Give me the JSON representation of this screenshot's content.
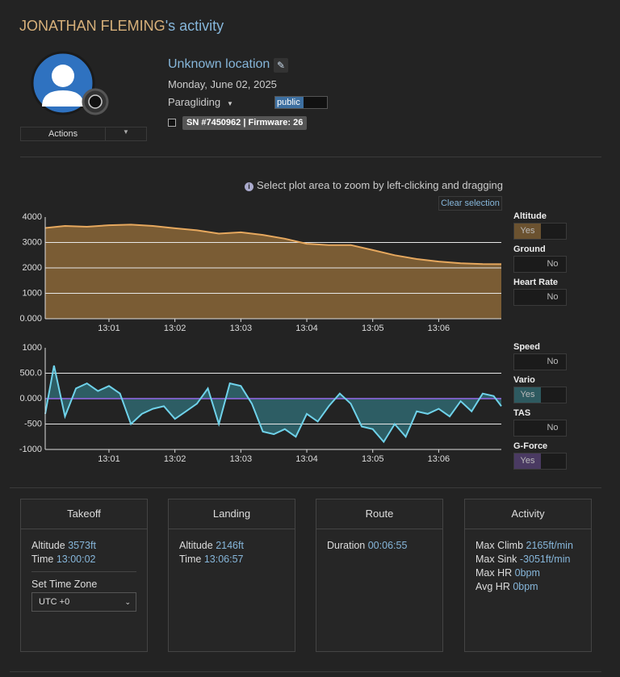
{
  "header": {
    "name": "JONATHAN FLEMING",
    "suffix": "'s activity"
  },
  "profile": {
    "actions": "Actions"
  },
  "activity": {
    "location": "Unknown location",
    "date": "Monday, June 02, 2025",
    "sport": "Paragliding",
    "visibility": "public",
    "device": "SN #7450962 | Firmware: 26"
  },
  "hint": "Select plot area to zoom by left-clicking and dragging",
  "clear": "Clear selection",
  "toggles": [
    {
      "label": "Altitude",
      "state": "Yes",
      "color": "#6b5230"
    },
    {
      "label": "Ground",
      "state": "No"
    },
    {
      "label": "Heart Rate",
      "state": "No"
    },
    {
      "label": "Speed",
      "state": "No"
    },
    {
      "label": "Vario",
      "state": "Yes",
      "color": "#2e5a60"
    },
    {
      "label": "TAS",
      "state": "No"
    },
    {
      "label": "G-Force",
      "state": "Yes",
      "color": "#4a3a62"
    }
  ],
  "chart_data": [
    {
      "type": "area",
      "color": "#e6a85e",
      "fill": "#7a5c34",
      "x": [
        "13:00:02",
        "13:00:20",
        "13:00:40",
        "13:01:00",
        "13:01:20",
        "13:01:40",
        "13:02:00",
        "13:02:20",
        "13:02:40",
        "13:03:00",
        "13:03:20",
        "13:03:40",
        "13:04:00",
        "13:04:20",
        "13:04:40",
        "13:05:00",
        "13:05:20",
        "13:05:40",
        "13:06:00",
        "13:06:20",
        "13:06:40",
        "13:06:57"
      ],
      "values": [
        3573,
        3650,
        3620,
        3680,
        3700,
        3650,
        3560,
        3480,
        3350,
        3400,
        3300,
        3150,
        2950,
        2900,
        2900,
        2700,
        2500,
        2350,
        2250,
        2180,
        2150,
        2146
      ],
      "xlim": [
        "13:00:02",
        "13:06:57"
      ],
      "xticks": [
        "13:01",
        "13:02",
        "13:03",
        "13:04",
        "13:05",
        "13:06"
      ],
      "ylim": [
        0,
        4000
      ],
      "yticks": [
        {
          "value": 0,
          "label": "0.000"
        },
        1000,
        2000,
        3000,
        4000
      ],
      "grid": true
    },
    {
      "type": "area",
      "color": "#6fd2ea",
      "fill": "#2d5d64",
      "x": [
        "13:00:02",
        "13:00:10",
        "13:00:20",
        "13:00:30",
        "13:00:40",
        "13:00:50",
        "13:01:00",
        "13:01:10",
        "13:01:20",
        "13:01:30",
        "13:01:40",
        "13:01:50",
        "13:02:00",
        "13:02:10",
        "13:02:20",
        "13:02:30",
        "13:02:40",
        "13:02:50",
        "13:03:00",
        "13:03:10",
        "13:03:20",
        "13:03:30",
        "13:03:40",
        "13:03:50",
        "13:04:00",
        "13:04:10",
        "13:04:20",
        "13:04:30",
        "13:04:40",
        "13:04:50",
        "13:05:00",
        "13:05:10",
        "13:05:20",
        "13:05:30",
        "13:05:40",
        "13:05:50",
        "13:06:00",
        "13:06:10",
        "13:06:20",
        "13:06:30",
        "13:06:40",
        "13:06:50",
        "13:06:57"
      ],
      "values": [
        -300,
        650,
        -350,
        200,
        300,
        150,
        250,
        100,
        -500,
        -300,
        -200,
        -150,
        -400,
        -250,
        -100,
        200,
        -500,
        300,
        250,
        -100,
        -650,
        -700,
        -600,
        -750,
        -300,
        -450,
        -150,
        100,
        -100,
        -550,
        -600,
        -850,
        -500,
        -750,
        -250,
        -300,
        -200,
        -350,
        -50,
        -250,
        100,
        50,
        -150
      ],
      "xlim": [
        "13:00:02",
        "13:06:57"
      ],
      "xticks": [
        "13:01",
        "13:02",
        "13:03",
        "13:04",
        "13:05",
        "13:06"
      ],
      "ylim": [
        -1000,
        1000
      ],
      "yticks": [
        -1000,
        -500,
        {
          "value": 0,
          "label": "0.000"
        },
        {
          "value": 500,
          "label": "500.0"
        },
        1000
      ],
      "grid": true
    }
  ],
  "cards": [
    {
      "title": "Takeoff",
      "rows": [
        {
          "label": "Altitude",
          "value": "3573ft"
        },
        {
          "label": "Time",
          "value": "13:00:02"
        }
      ],
      "timezone_label": "Set Time Zone",
      "timezone": "UTC +0"
    },
    {
      "title": "Landing",
      "rows": [
        {
          "label": "Altitude",
          "value": "2146ft"
        },
        {
          "label": "Time",
          "value": "13:06:57"
        }
      ]
    },
    {
      "title": "Route",
      "rows": [
        {
          "label": "Duration",
          "value": "00:06:55"
        }
      ]
    },
    {
      "title": "Activity",
      "rows": [
        {
          "label": "Max Climb",
          "value": "2165ft/min"
        },
        {
          "label": "Max Sink",
          "value": "-3051ft/min"
        },
        {
          "label": "Max HR",
          "value": "0bpm"
        },
        {
          "label": "Avg HR",
          "value": "0bpm"
        }
      ]
    }
  ]
}
